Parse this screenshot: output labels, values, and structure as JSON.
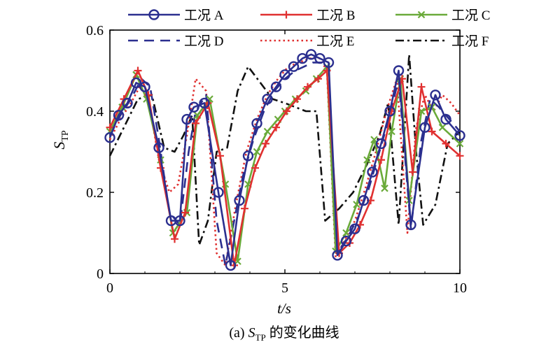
{
  "chart_data": {
    "type": "line",
    "xlabel": "t/s",
    "ylabel_main": "S",
    "ylabel_sub": "TP",
    "caption_prefix": "(a) ",
    "caption_main": "S",
    "caption_sub": "TP",
    "caption_suffix": " 的变化曲线",
    "xlim": [
      0,
      10
    ],
    "ylim": [
      0,
      0.6
    ],
    "xticks": [
      "0",
      "5",
      "10"
    ],
    "yticks": [
      "0",
      "0.2",
      "0.4",
      "0.6"
    ],
    "grid": false,
    "legend_position": "top",
    "series": [
      {
        "name": "工况 A",
        "color": "#2b2f8f",
        "style": "solid",
        "marker": "circle",
        "x": [
          0,
          0.25,
          0.5,
          0.75,
          1.0,
          1.4,
          1.75,
          2.0,
          2.2,
          2.4,
          2.7,
          3.1,
          3.45,
          3.7,
          3.95,
          4.2,
          4.5,
          4.75,
          5.0,
          5.25,
          5.5,
          5.75,
          6.0,
          6.25,
          6.5,
          6.75,
          7.0,
          7.25,
          7.5,
          7.75,
          8.0,
          8.25,
          8.6,
          9.0,
          9.3,
          9.6,
          10.0
        ],
        "y": [
          0.335,
          0.39,
          0.42,
          0.47,
          0.46,
          0.31,
          0.13,
          0.13,
          0.38,
          0.41,
          0.42,
          0.2,
          0.02,
          0.18,
          0.29,
          0.37,
          0.43,
          0.46,
          0.49,
          0.51,
          0.53,
          0.54,
          0.53,
          0.52,
          0.045,
          0.08,
          0.11,
          0.18,
          0.25,
          0.32,
          0.4,
          0.5,
          0.12,
          0.36,
          0.44,
          0.38,
          0.34
        ]
      },
      {
        "name": "工况 B",
        "color": "#e03030",
        "style": "solid",
        "marker": "plus",
        "x": [
          0,
          0.4,
          0.8,
          1.1,
          1.45,
          1.85,
          2.15,
          2.45,
          2.8,
          3.15,
          3.55,
          3.85,
          4.15,
          4.45,
          4.75,
          5.05,
          5.35,
          5.65,
          5.95,
          6.2,
          6.55,
          6.85,
          7.15,
          7.45,
          7.75,
          8.05,
          8.35,
          8.65,
          8.9,
          9.2,
          9.6,
          10.0
        ],
        "y": [
          0.36,
          0.43,
          0.5,
          0.44,
          0.26,
          0.085,
          0.15,
          0.37,
          0.42,
          0.29,
          0.02,
          0.16,
          0.26,
          0.32,
          0.36,
          0.4,
          0.43,
          0.46,
          0.48,
          0.5,
          0.05,
          0.075,
          0.12,
          0.18,
          0.28,
          0.4,
          0.48,
          0.25,
          0.46,
          0.35,
          0.32,
          0.29
        ]
      },
      {
        "name": "工况 C",
        "color": "#6aaa3a",
        "style": "solid",
        "marker": "x",
        "x": [
          0,
          0.35,
          0.75,
          1.05,
          1.45,
          1.8,
          2.2,
          2.5,
          2.85,
          3.3,
          3.65,
          3.95,
          4.2,
          4.5,
          4.8,
          5.0,
          5.3,
          5.6,
          5.9,
          6.2,
          6.45,
          6.75,
          7.05,
          7.35,
          7.55,
          7.85,
          8.05,
          8.3,
          8.55,
          8.9,
          9.2,
          9.5,
          10.0
        ],
        "y": [
          0.35,
          0.41,
          0.49,
          0.43,
          0.28,
          0.1,
          0.15,
          0.39,
          0.43,
          0.22,
          0.03,
          0.22,
          0.3,
          0.35,
          0.38,
          0.4,
          0.43,
          0.45,
          0.48,
          0.51,
          0.055,
          0.1,
          0.17,
          0.28,
          0.33,
          0.21,
          0.35,
          0.48,
          0.18,
          0.4,
          0.41,
          0.36,
          0.32
        ]
      },
      {
        "name": "工况 D",
        "color": "#2b2f8f",
        "style": "dashed",
        "marker": "none",
        "x": [
          0,
          0.3,
          0.6,
          0.9,
          1.15,
          1.4,
          1.7,
          2.0,
          2.25,
          2.45,
          2.75,
          3.05,
          3.3,
          3.55,
          3.8,
          4.1,
          4.4,
          4.7,
          5.0,
          5.3,
          5.55,
          5.8,
          6.05,
          6.2,
          6.5,
          6.8,
          7.1,
          7.4,
          7.7,
          8.0,
          8.25,
          8.6,
          8.9,
          9.15,
          9.4,
          9.7,
          10.0
        ],
        "y": [
          0.34,
          0.39,
          0.43,
          0.48,
          0.46,
          0.33,
          0.15,
          0.12,
          0.3,
          0.4,
          0.44,
          0.13,
          0.02,
          0.13,
          0.24,
          0.33,
          0.4,
          0.45,
          0.48,
          0.5,
          0.51,
          0.52,
          0.52,
          0.51,
          0.05,
          0.09,
          0.14,
          0.21,
          0.3,
          0.39,
          0.48,
          0.11,
          0.33,
          0.43,
          0.41,
          0.38,
          0.35
        ]
      },
      {
        "name": "工况 E",
        "color": "#e03030",
        "style": "dotted",
        "marker": "none",
        "x": [
          0,
          0.3,
          0.6,
          0.85,
          1.1,
          1.4,
          1.7,
          1.95,
          2.2,
          2.45,
          2.75,
          3.05,
          3.3,
          3.6,
          3.9,
          4.2,
          4.5,
          4.8,
          5.1,
          5.4,
          5.7,
          6.0,
          6.2,
          6.45,
          6.7,
          7.0,
          7.3,
          7.6,
          7.9,
          8.2,
          8.5,
          8.75,
          9.0,
          9.25,
          9.5,
          9.75,
          10.0
        ],
        "y": [
          0.33,
          0.38,
          0.42,
          0.46,
          0.43,
          0.28,
          0.2,
          0.22,
          0.34,
          0.48,
          0.45,
          0.05,
          0.02,
          0.17,
          0.3,
          0.38,
          0.44,
          0.48,
          0.51,
          0.52,
          0.53,
          0.53,
          0.5,
          0.04,
          0.08,
          0.13,
          0.21,
          0.3,
          0.4,
          0.48,
          0.1,
          0.36,
          0.44,
          0.4,
          0.44,
          0.42,
          0.39
        ]
      },
      {
        "name": "工况 F",
        "color": "#111111",
        "style": "dashdot",
        "marker": "none",
        "x": [
          0,
          0.4,
          0.8,
          1.2,
          1.55,
          1.85,
          2.1,
          2.35,
          2.55,
          2.8,
          3.05,
          3.35,
          3.65,
          3.95,
          4.3,
          4.65,
          5.0,
          5.3,
          5.6,
          5.9,
          6.15,
          6.55,
          6.95,
          7.35,
          7.7,
          7.95,
          8.25,
          8.55,
          8.75,
          8.95,
          9.3,
          9.65,
          10.0
        ],
        "y": [
          0.29,
          0.36,
          0.43,
          0.44,
          0.31,
          0.3,
          0.34,
          0.39,
          0.07,
          0.13,
          0.3,
          0.31,
          0.45,
          0.51,
          0.47,
          0.43,
          0.42,
          0.41,
          0.4,
          0.4,
          0.13,
          0.16,
          0.2,
          0.27,
          0.34,
          0.42,
          0.12,
          0.54,
          0.3,
          0.12,
          0.17,
          0.32,
          0.35
        ]
      }
    ]
  }
}
